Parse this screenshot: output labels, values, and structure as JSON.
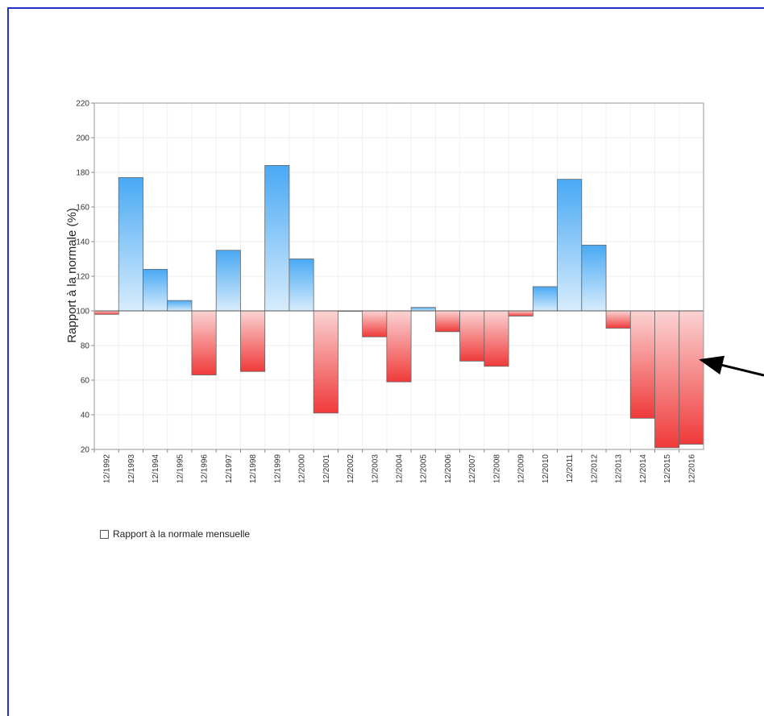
{
  "chart_data": {
    "type": "bar",
    "ylabel": "Rapport à la normale (%)",
    "xlabel": "",
    "title": "",
    "ylim": [
      20,
      220
    ],
    "yticks": [
      20,
      40,
      60,
      80,
      100,
      120,
      140,
      160,
      180,
      200,
      220
    ],
    "baseline": 100,
    "grid": true,
    "categories": [
      "12/1992",
      "12/1993",
      "12/1994",
      "12/1995",
      "12/1996",
      "12/1997",
      "12/1998",
      "12/1999",
      "12/2000",
      "12/2001",
      "12/2002",
      "12/2003",
      "12/2004",
      "12/2005",
      "12/2006",
      "12/2007",
      "12/2008",
      "12/2009",
      "12/2010",
      "12/2011",
      "12/2012",
      "12/2013",
      "12/2014",
      "12/2015",
      "12/2016"
    ],
    "series": [
      {
        "name": "Rapport à la normale mensuelle",
        "values": [
          98,
          177,
          124,
          106,
          63,
          135,
          65,
          184,
          130,
          41,
          100,
          85,
          59,
          102,
          88,
          71,
          68,
          97,
          114,
          176,
          138,
          90,
          38,
          21,
          23
        ]
      }
    ],
    "colors": {
      "above": "#49a9f4",
      "above_light": "#d7ecfc",
      "below": "#f03a3a",
      "below_light": "#fbd3d3"
    },
    "legend": {
      "placement": "bottom-left",
      "label": "Rapport à la normale mensuelle"
    },
    "annotation": "arrow pointing to 12/2016 bar"
  }
}
